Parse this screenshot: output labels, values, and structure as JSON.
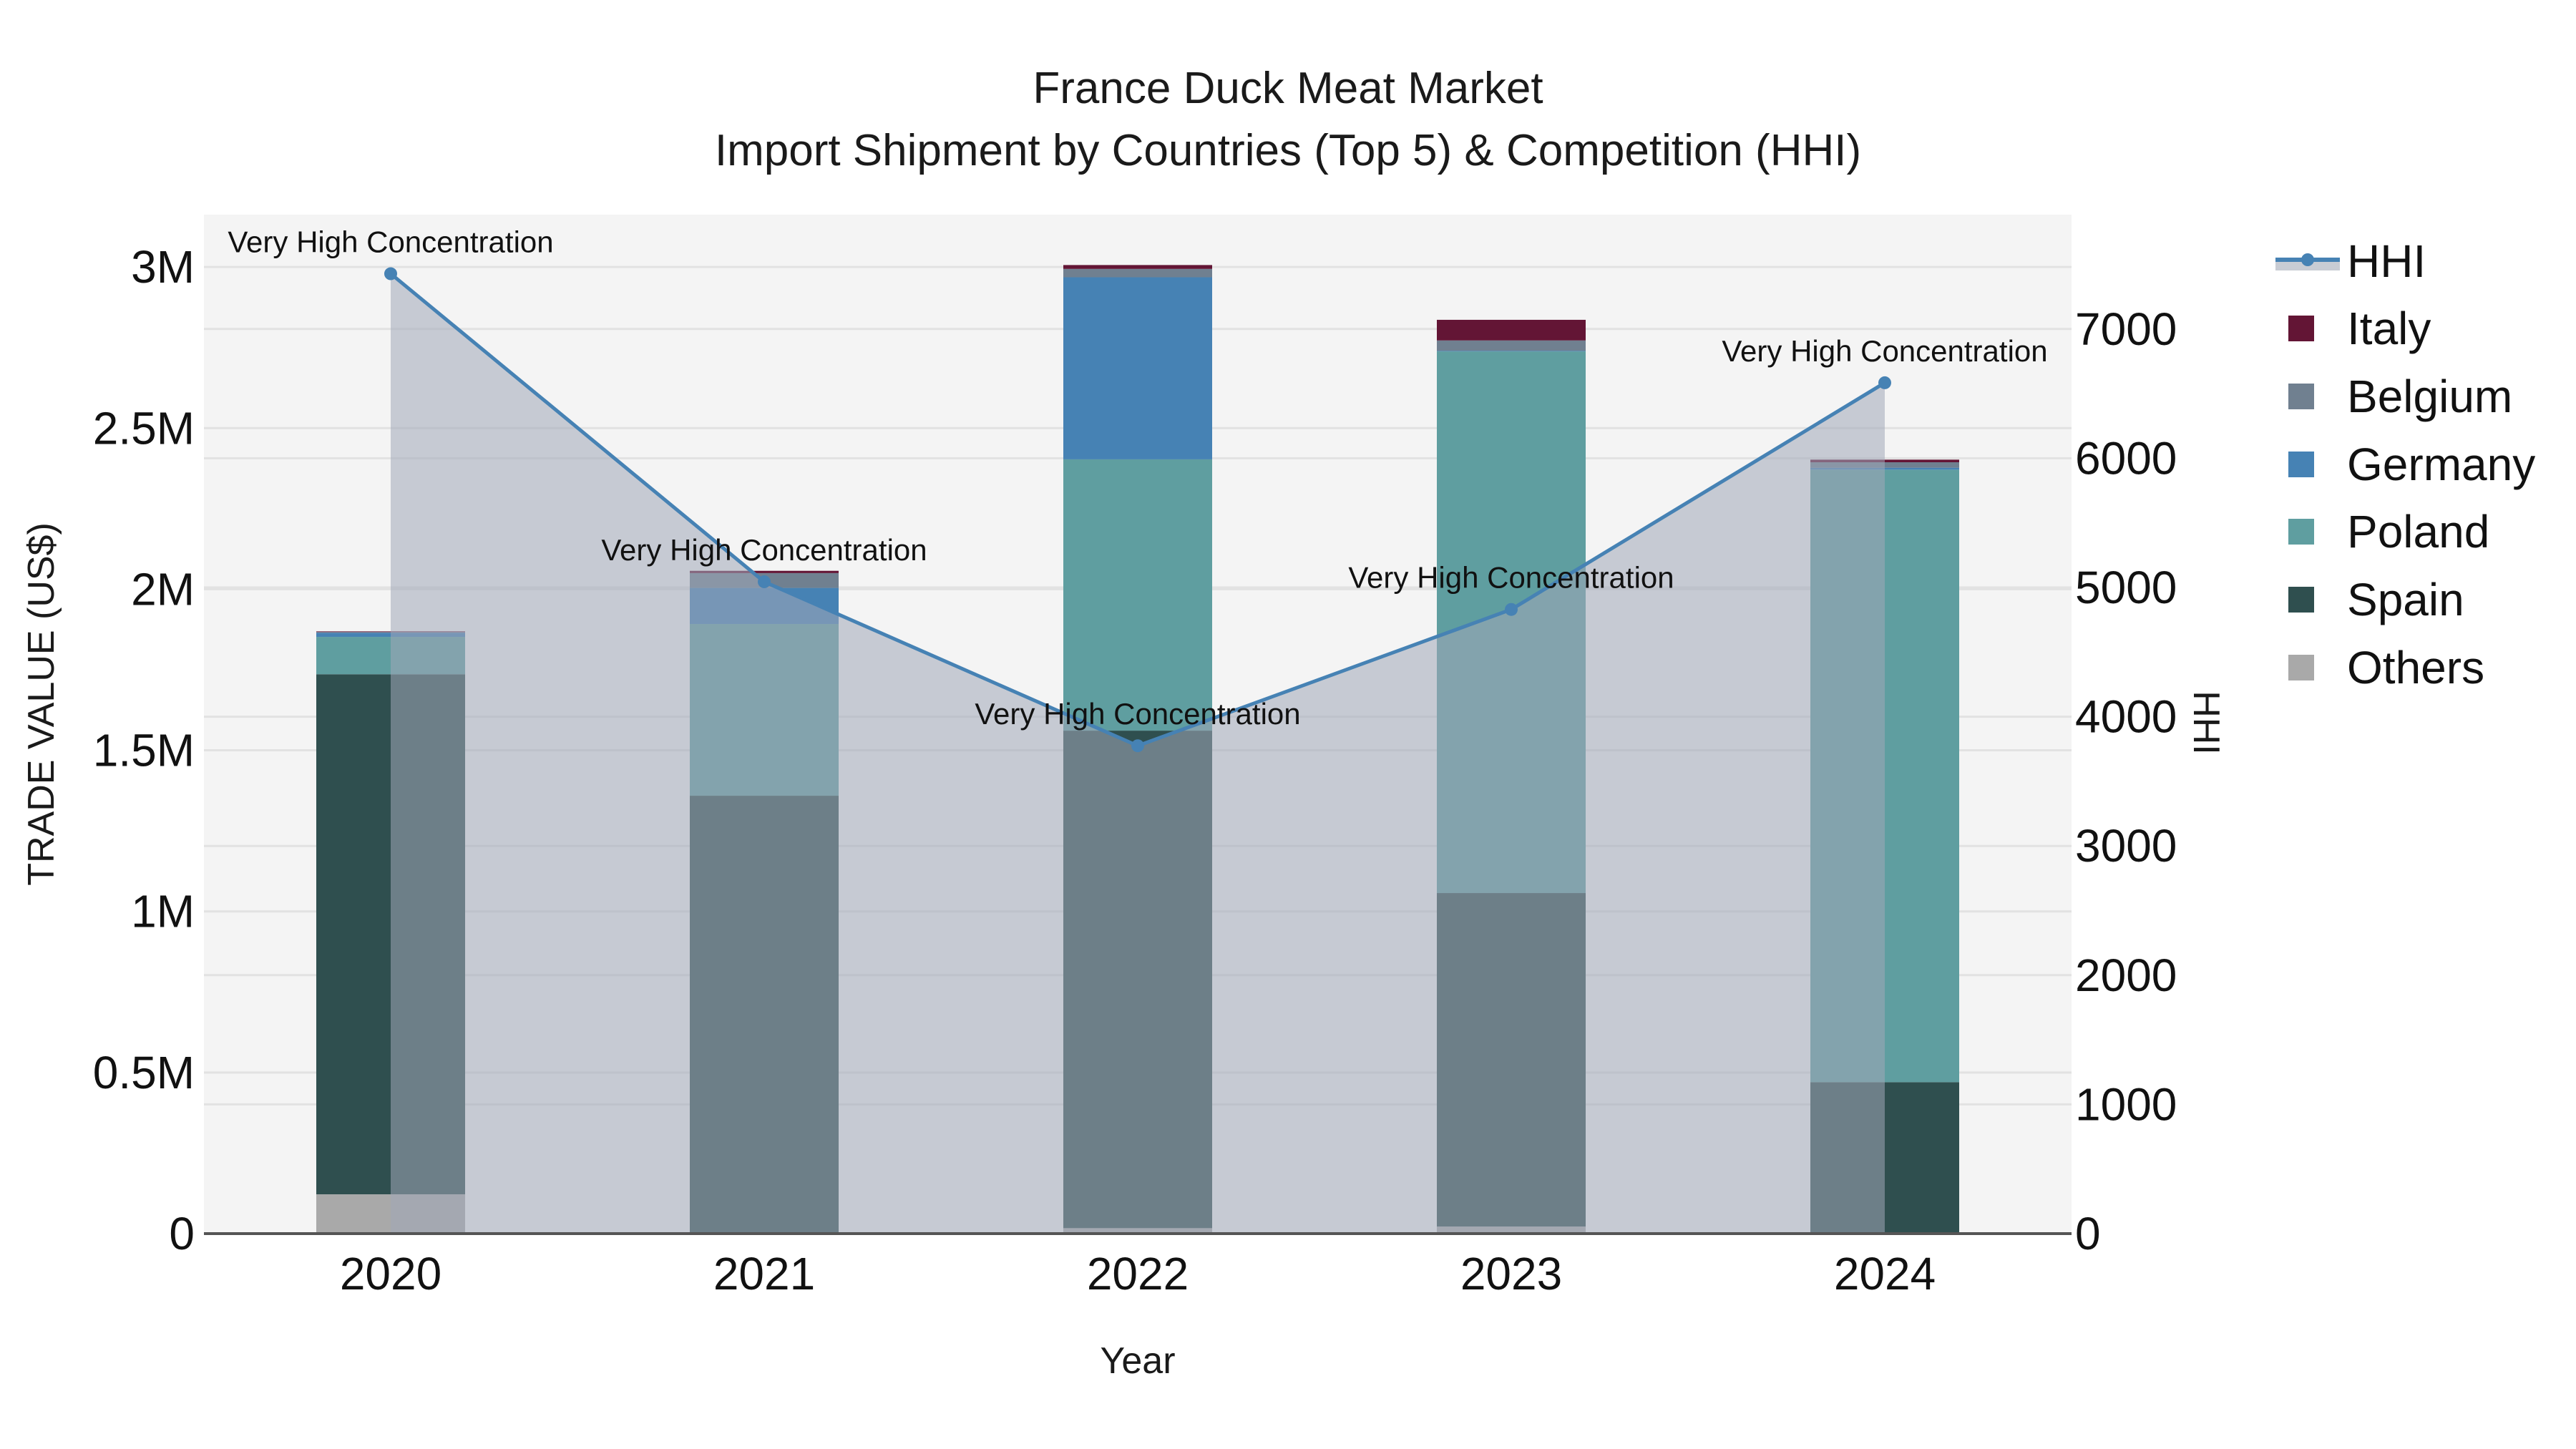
{
  "title": {
    "line1": "France Duck Meat Market",
    "line2": "Import Shipment by Countries (Top 5) & Competition (HHI)"
  },
  "axes": {
    "x_title": "Year",
    "y_left_title": "TRADE VALUE (US$)",
    "y_right_title": "HHI"
  },
  "legend": [
    {
      "name": "HHI",
      "type": "line",
      "color": "#4682b4",
      "fill": "#c8ccd4"
    },
    {
      "name": "Italy",
      "type": "bar",
      "color": "#631535"
    },
    {
      "name": "Belgium",
      "type": "bar",
      "color": "#708090"
    },
    {
      "name": "Germany",
      "type": "bar",
      "color": "#4682b4"
    },
    {
      "name": "Poland",
      "type": "bar",
      "color": "#5f9ea0"
    },
    {
      "name": "Spain",
      "type": "bar",
      "color": "#2f4f4f"
    },
    {
      "name": "Others",
      "type": "bar",
      "color": "#a9a9a9"
    }
  ],
  "chart_data": {
    "type": "bar",
    "stacked": true,
    "title": "France Duck Meat Market — Import Shipment by Countries (Top 5) & Competition (HHI)",
    "xlabel": "Year",
    "ylabel": "TRADE VALUE (US$)",
    "y2label": "HHI",
    "categories": [
      "2020",
      "2021",
      "2022",
      "2023",
      "2024"
    ],
    "series": [
      {
        "name": "Others",
        "color": "#a9a9a9",
        "values": [
          122000,
          3000,
          17000,
          22000,
          4000
        ]
      },
      {
        "name": "Spain",
        "color": "#2f4f4f",
        "values": [
          1614000,
          1356000,
          1544000,
          1035000,
          466000
        ]
      },
      {
        "name": "Poland",
        "color": "#5f9ea0",
        "values": [
          116000,
          533000,
          842000,
          1681000,
          1901000
        ]
      },
      {
        "name": "Germany",
        "color": "#4682b4",
        "values": [
          13000,
          112000,
          565000,
          2000,
          6000
        ]
      },
      {
        "name": "Belgium",
        "color": "#708090",
        "values": [
          2000,
          46000,
          26000,
          32000,
          17000
        ]
      },
      {
        "name": "Italy",
        "color": "#631535",
        "values": [
          2000,
          7000,
          12000,
          64000,
          8000
        ]
      }
    ],
    "line_series": {
      "name": "HHI",
      "axis": "y2",
      "color": "#4682b4",
      "fill": "tozeroy",
      "values": [
        7428,
        5044,
        3775,
        4830,
        6584
      ],
      "annotations": [
        "Very High Concentration",
        "Very High Concentration",
        "Very High Concentration",
        "Very High Concentration",
        "Very High Concentration"
      ]
    },
    "y_ticks": [
      {
        "value": 0,
        "label": "0"
      },
      {
        "value": 500000,
        "label": "0.5M"
      },
      {
        "value": 1000000,
        "label": "1M"
      },
      {
        "value": 1500000,
        "label": "1.5M"
      },
      {
        "value": 2000000,
        "label": "2M"
      },
      {
        "value": 2500000,
        "label": "2.5M"
      },
      {
        "value": 3000000,
        "label": "3M"
      }
    ],
    "y2_ticks": [
      {
        "value": 0,
        "label": "0"
      },
      {
        "value": 1000,
        "label": "1000"
      },
      {
        "value": 2000,
        "label": "2000"
      },
      {
        "value": 3000,
        "label": "3000"
      },
      {
        "value": 4000,
        "label": "4000"
      },
      {
        "value": 5000,
        "label": "5000"
      },
      {
        "value": 6000,
        "label": "6000"
      },
      {
        "value": 7000,
        "label": "7000"
      }
    ],
    "ylim": [
      0,
      3160000
    ],
    "y2lim": [
      0,
      7880
    ],
    "grid": true,
    "legend_position": "right"
  }
}
